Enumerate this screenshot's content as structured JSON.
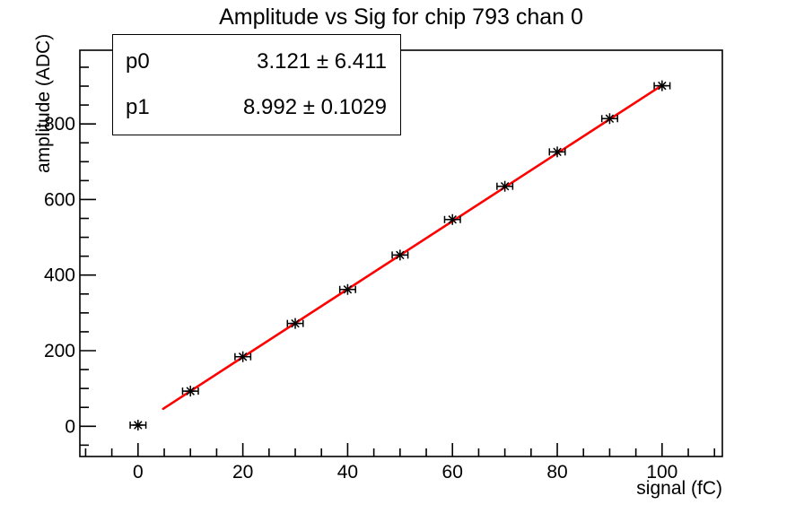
{
  "page": {
    "background": "#ffffff",
    "frame_color": "#000000"
  },
  "chart_data": {
    "type": "scatter",
    "title": "Amplitude vs Sig for chip 793 chan 0",
    "xlabel": "signal (fC)",
    "ylabel": "amplitude (ADC)",
    "x": [
      0,
      10,
      20,
      30,
      40,
      50,
      60,
      70,
      80,
      90,
      100
    ],
    "y": [
      3,
      93,
      184,
      272,
      362,
      453,
      547,
      635,
      726,
      814,
      901
    ],
    "x_err": 1.5,
    "marker": "asterisk-with-x-error-bars",
    "marker_color": "#000000",
    "xlim": [
      -11.1,
      111.5
    ],
    "ylim": [
      -80,
      995
    ],
    "x_major_ticks": [
      0,
      20,
      40,
      60,
      80,
      100
    ],
    "x_tick_labels": [
      "0",
      "20",
      "40",
      "60",
      "80",
      "100"
    ],
    "x_minor_step": 5,
    "y_major_ticks": [
      0,
      200,
      400,
      600,
      800
    ],
    "y_tick_labels": [
      "0",
      "200",
      "400",
      "600",
      "800"
    ],
    "y_minor_step": 50,
    "grid": false,
    "legend": "none",
    "fit": {
      "type": "linear",
      "p0": 3.121,
      "p0_err": 6.411,
      "p1": 8.992,
      "p1_err": 0.1029,
      "x_range": [
        4.8,
        100
      ],
      "color": "#ff0000"
    }
  },
  "stats_box": {
    "rows": [
      {
        "param": "p0",
        "value": "3.121 ± 6.411"
      },
      {
        "param": "p1",
        "value": "8.992 ± 0.1029"
      }
    ]
  }
}
